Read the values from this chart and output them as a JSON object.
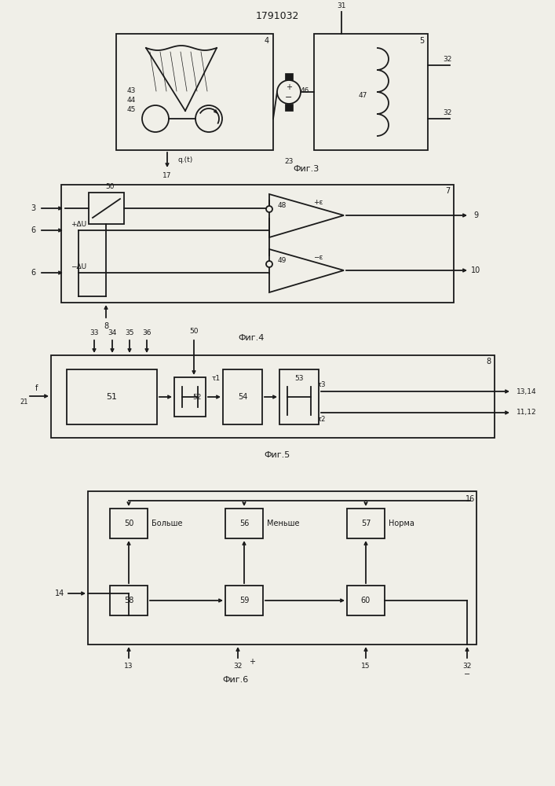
{
  "title": "1791032",
  "bg_color": "#f0efe8",
  "line_color": "#1a1a1a",
  "fig3_caption": "Фиг.3",
  "fig4_caption": "Фиг.4",
  "fig5_caption": "Фиг.5",
  "fig6_caption": "Фиг.6"
}
